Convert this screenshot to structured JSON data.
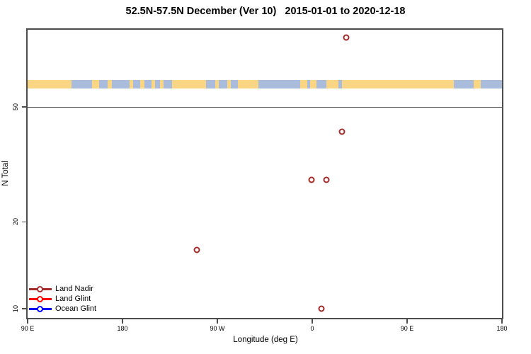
{
  "header": {
    "title": "52.5N-57.5N December (Ver 10)   2015-01-01 to 2020-12-18"
  },
  "axes": {
    "xlabel": "Longitude (deg E)",
    "ylabel": "N Total"
  },
  "legend": {
    "items": [
      {
        "label": "Land Nadir",
        "color": "#A52A2A"
      },
      {
        "label": "Land Glint",
        "color": "#FF0000"
      },
      {
        "label": "Ocean Glint",
        "color": "#0000FF"
      }
    ]
  },
  "colors": {
    "frame": "#4d4d4d",
    "reference_line": "#4a4a4a",
    "point": "#A52A2A",
    "land": "#FAD584",
    "ocean": "#A9BCDC"
  },
  "chart_data": {
    "type": "scatter",
    "title": "52.5N-57.5N December (Ver 10)   2015-01-01 to 2020-12-18",
    "xlabel": "Longitude (deg E)",
    "ylabel": "N Total",
    "y_scale": "log10",
    "ylim": [
      9.2,
      93.6
    ],
    "grid": false,
    "legend_position": "bottom-left-inside",
    "x_axis": {
      "note": "axis wraps eastward: 90E -> 180 -> 90W -> 0 -> 90E -> 180, u = degrees east of 90E (0..450)",
      "u_range": [
        0,
        450
      ],
      "ticks": [
        {
          "u": 0,
          "label": "90 E"
        },
        {
          "u": 90,
          "label": "180"
        },
        {
          "u": 180,
          "label": "90 W"
        },
        {
          "u": 270,
          "label": "0"
        },
        {
          "u": 360,
          "label": "90 E"
        },
        {
          "u": 450,
          "label": "180"
        }
      ]
    },
    "y_ticks": [
      {
        "value": 10,
        "label": "10"
      },
      {
        "value": 20,
        "label": "20"
      },
      {
        "value": 50,
        "label": "50"
      }
    ],
    "reference_line": {
      "value": 50
    },
    "series": [
      {
        "name": "Land Nadir",
        "color": "#A52A2A",
        "points": [
          {
            "u": 302.5,
            "lon_deg_e": 32.5,
            "n": 87
          },
          {
            "u": 298.0,
            "lon_deg_e": 28.0,
            "n": 41
          },
          {
            "u": 269.5,
            "lon_deg_e": -0.5,
            "n": 28
          },
          {
            "u": 283.5,
            "lon_deg_e": 13.5,
            "n": 28
          },
          {
            "u": 160.5,
            "lon_deg_e": -109.5,
            "n": 16
          },
          {
            "u": 279.0,
            "lon_deg_e": 9.0,
            "n": 10
          }
        ]
      },
      {
        "name": "Land Glint",
        "color": "#FF0000",
        "points": []
      },
      {
        "name": "Ocean Glint",
        "color": "#0000FF",
        "points": []
      }
    ],
    "map_band": {
      "description": "land/ocean coastline strip for latitude band 52.5N-57.5N drawn across plot near N=60",
      "ocean_color": "#A9BCDC",
      "land_color": "#FAD584",
      "land_segments_fraction": [
        [
          0.0,
          0.093
        ],
        [
          0.135,
          0.151
        ],
        [
          0.169,
          0.177
        ],
        [
          0.215,
          0.223
        ],
        [
          0.237,
          0.247
        ],
        [
          0.261,
          0.269
        ],
        [
          0.279,
          0.287
        ],
        [
          0.305,
          0.377
        ],
        [
          0.396,
          0.403
        ],
        [
          0.421,
          0.429
        ],
        [
          0.443,
          0.486
        ],
        [
          0.575,
          0.589
        ],
        [
          0.596,
          0.609
        ],
        [
          0.63,
          0.655
        ],
        [
          0.663,
          0.898
        ],
        [
          0.94,
          0.955
        ]
      ]
    }
  }
}
